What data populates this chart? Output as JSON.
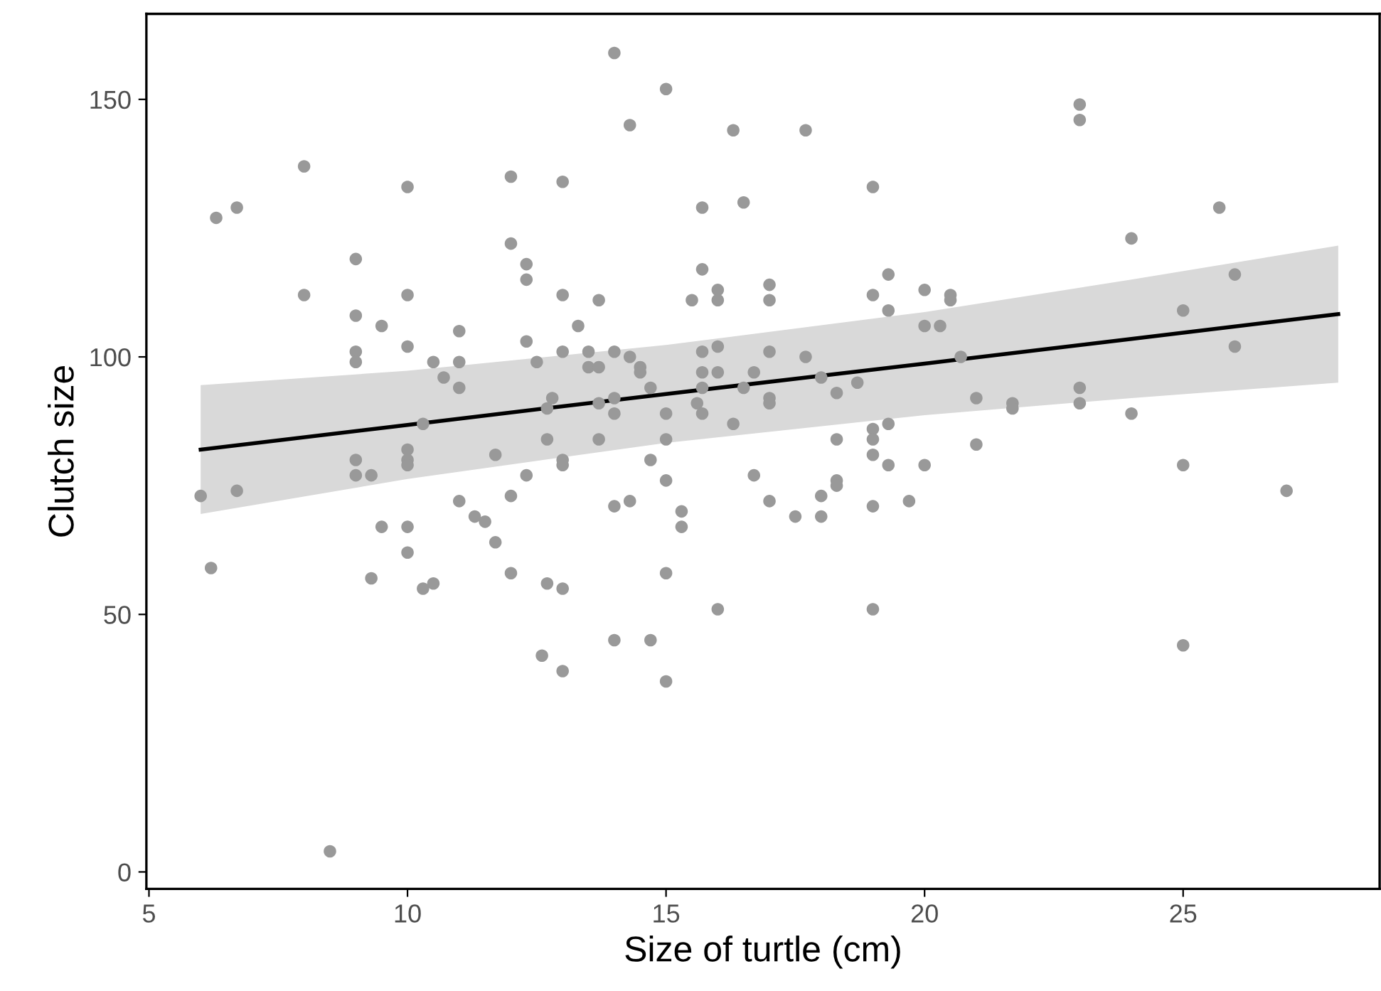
{
  "chart_data": {
    "type": "scatter",
    "xlabel": "Size of turtle (cm)",
    "ylabel": "Clutch size",
    "xlim": [
      4.95,
      28.8
    ],
    "ylim": [
      -3.3,
      166.6
    ],
    "xticks": [
      5,
      10,
      15,
      20,
      25
    ],
    "yticks": [
      0,
      50,
      100,
      150
    ],
    "grid": false,
    "legend": false,
    "series": [
      {
        "color": "#999999",
        "marker": "circle",
        "x": [
          6.3,
          6.7,
          8.0,
          10.0,
          12.0,
          13.0,
          9.0,
          12.0,
          12.3,
          12.3,
          8.0,
          10.0,
          13.0,
          9.0,
          9.5,
          11.0,
          10.0,
          12.3,
          13.0,
          9.0,
          9.0,
          10.5,
          11.0,
          12.5,
          10.7,
          11.0,
          12.8,
          12.7,
          10.3,
          12.7,
          10.0,
          11.7,
          6.0,
          6.7,
          6.2,
          9.0,
          9.0,
          9.3,
          10.0,
          10.0,
          13.0,
          13.0,
          12.3,
          11.0,
          12.0,
          11.3,
          11.5,
          9.5,
          10.0,
          10.0,
          11.7,
          9.3,
          10.3,
          10.5,
          12.0,
          12.7,
          13.0,
          12.6,
          13.0,
          8.5,
          14.0,
          15.0,
          14.3,
          16.3,
          17.7,
          19.0,
          15.7,
          16.5,
          15.7,
          16.0,
          17.0,
          19.3,
          13.7,
          15.5,
          16.0,
          17.0,
          19.0,
          20.0,
          20.5,
          20.5,
          19.3,
          20.0,
          20.3,
          13.3,
          13.5,
          14.0,
          13.5,
          13.7,
          14.3,
          14.5,
          14.5,
          15.7,
          16.0,
          17.0,
          17.7,
          20.7,
          14.7,
          15.7,
          16.0,
          16.7,
          15.7,
          16.5,
          18.0,
          18.7,
          18.3,
          14.0,
          13.7,
          15.6,
          17.0,
          17.0,
          21.0,
          14.0,
          15.0,
          15.7,
          16.3,
          19.3,
          19.0,
          19.0,
          13.7,
          15.0,
          18.3,
          21.0,
          14.7,
          15.0,
          16.7,
          19.0,
          19.3,
          20.0,
          14.0,
          14.3,
          15.3,
          15.3,
          17.0,
          18.0,
          17.5,
          18.0,
          18.3,
          18.3,
          19.0,
          19.7,
          15.0,
          16.0,
          19.0,
          14.0,
          14.7,
          15.0,
          23.0,
          23.0,
          25.7,
          24.0,
          26.0,
          25.0,
          26.0,
          21.7,
          21.7,
          23.0,
          23.0,
          24.0,
          25.0,
          27.0,
          25.0
        ],
        "values": [
          127,
          129,
          137,
          133,
          135,
          134,
          119,
          122,
          118,
          115,
          112,
          112,
          112,
          108,
          106,
          105,
          102,
          103,
          101,
          101,
          99,
          99,
          99,
          99,
          96,
          94,
          92,
          90,
          87,
          84,
          82,
          81,
          73,
          74,
          59,
          80,
          77,
          77,
          80,
          79,
          80,
          79,
          77,
          72,
          73,
          69,
          68,
          67,
          67,
          62,
          64,
          57,
          55,
          56,
          58,
          56,
          55,
          42,
          39,
          4,
          159,
          152,
          145,
          144,
          144,
          133,
          129,
          130,
          117,
          113,
          114,
          116,
          111,
          111,
          111,
          111,
          112,
          113,
          112,
          111,
          109,
          106,
          106,
          106,
          101,
          101,
          98,
          98,
          100,
          98,
          97,
          101,
          102,
          101,
          100,
          100,
          94,
          97,
          97,
          97,
          94,
          94,
          96,
          95,
          93,
          92,
          91,
          91,
          92,
          91,
          92,
          89,
          89,
          89,
          87,
          87,
          86,
          84,
          84,
          84,
          84,
          83,
          80,
          76,
          77,
          81,
          79,
          79,
          71,
          72,
          70,
          67,
          72,
          73,
          69,
          69,
          76,
          75,
          71,
          72,
          58,
          51,
          51,
          45,
          45,
          37,
          149,
          146,
          129,
          123,
          116,
          109,
          102,
          91,
          90,
          94,
          91,
          89,
          79,
          74,
          44
        ]
      },
      {
        "type": "line",
        "color": "#000000",
        "line_style": "solid",
        "marker": "none",
        "x": [
          6,
          10,
          15,
          20,
          24,
          28
        ],
        "values": [
          82.0,
          86.8,
          92.8,
          98.7,
          103.5,
          108.3
        ],
        "lower": [
          69.5,
          76.3,
          83.3,
          88.7,
          92.0,
          95.0
        ],
        "upper": [
          94.5,
          97.3,
          102.3,
          108.7,
          115.0,
          121.6
        ]
      }
    ]
  }
}
